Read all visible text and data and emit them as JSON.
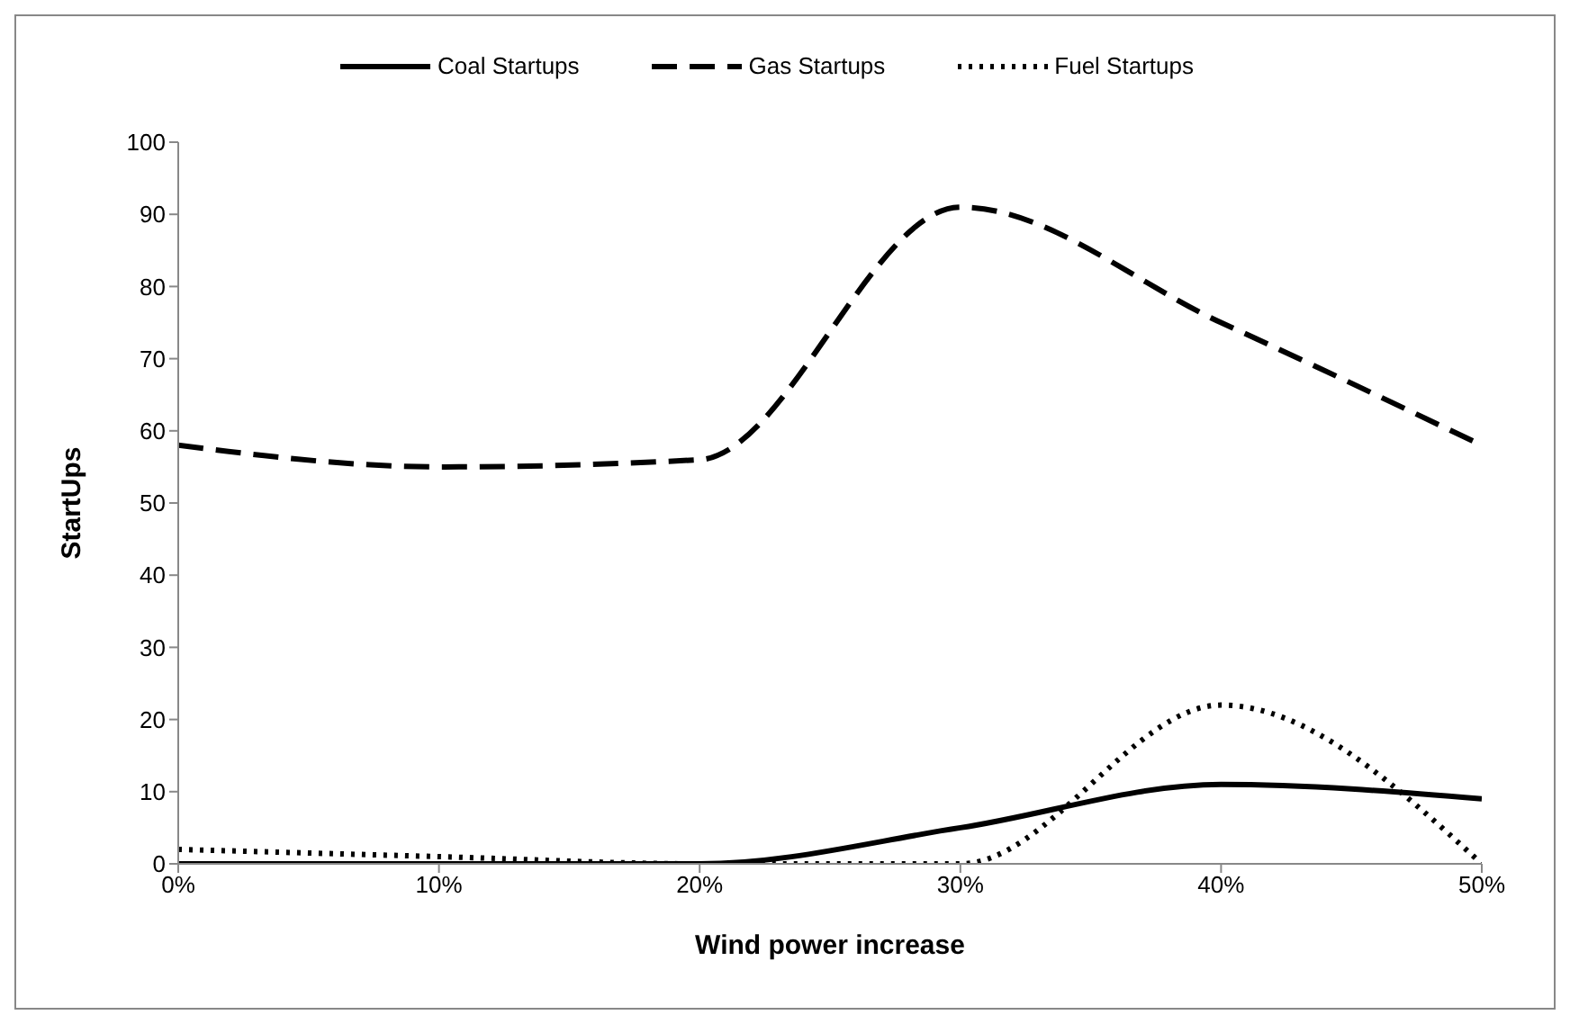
{
  "chart_data": {
    "type": "line",
    "xlabel": "Wind power increase",
    "ylabel": "StartUps",
    "categories": [
      "0%",
      "10%",
      "20%",
      "30%",
      "40%",
      "50%"
    ],
    "series": [
      {
        "name": "Coal Startups",
        "color": "#000000",
        "line_style": "solid",
        "values": [
          0,
          0,
          0,
          5,
          11,
          9
        ]
      },
      {
        "name": "Gas Startups",
        "color": "#000000",
        "line_style": "dashed",
        "values": [
          58,
          55,
          56,
          91,
          75,
          58
        ]
      },
      {
        "name": "Fuel Startups",
        "color": "#000000",
        "line_style": "dotted",
        "values": [
          2,
          1,
          0,
          0,
          22,
          0
        ]
      }
    ],
    "ylim": [
      0,
      100
    ],
    "yticks": [
      0,
      10,
      20,
      30,
      40,
      50,
      60,
      70,
      80,
      90,
      100
    ],
    "grid": false,
    "legend": "top",
    "marker": "none"
  }
}
